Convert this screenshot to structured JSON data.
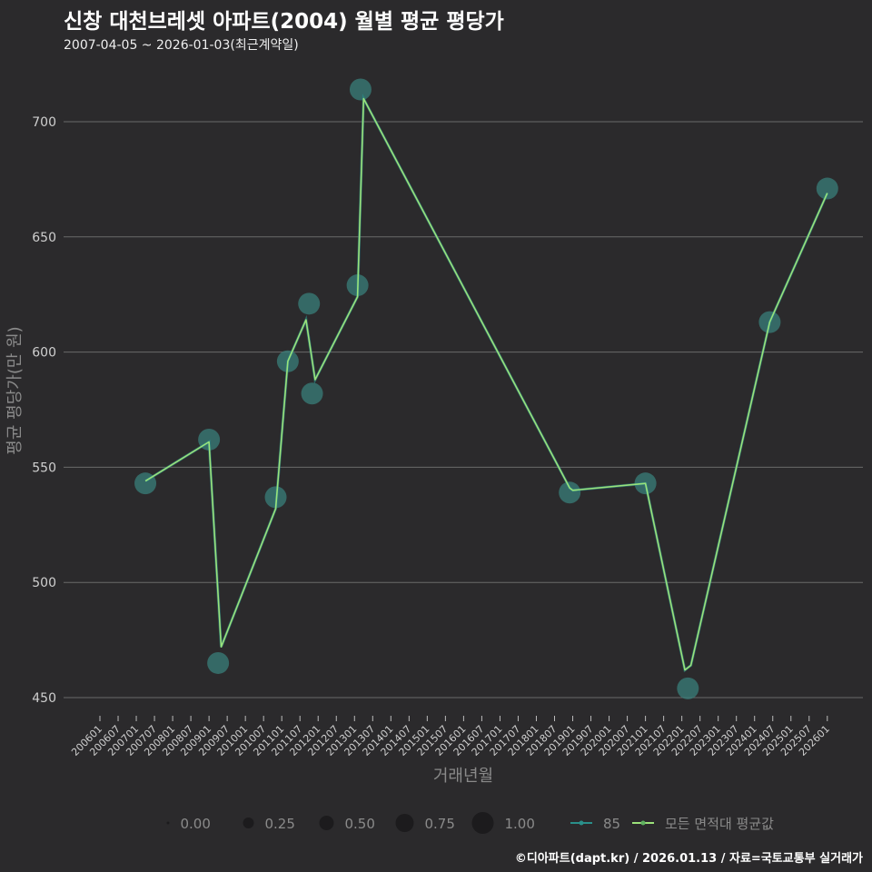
{
  "title": "신창 대천브레셋 아파트(2004) 월별 평균 평당가",
  "subtitle": "2007-04-05 ~ 2026-01-03(최근계약일)",
  "caption": "©디아파트(dapt.kr) / 2026.01.13 / 자료=국토교통부 실거래가",
  "colors": {
    "bg": "#2b2a2c",
    "series85": "#2a8f8a",
    "bubble": "#3a7f7a",
    "avg_line": "#9be27a",
    "grid": "#6a6a6a"
  },
  "chart_data": {
    "type": "line",
    "title": "신창 대천브레셋 아파트(2004) 월별 평균 평당가",
    "xlabel": "거래년월",
    "ylabel": "평균 평당가(만 원)",
    "ylim": [
      440,
      720
    ],
    "yticks": [
      450,
      500,
      550,
      600,
      650,
      700
    ],
    "xticks": [
      "200601",
      "200607",
      "200701",
      "200707",
      "200801",
      "200807",
      "200901",
      "200907",
      "201001",
      "201007",
      "201101",
      "201107",
      "201201",
      "201207",
      "201301",
      "201307",
      "201401",
      "201407",
      "201501",
      "201507",
      "201601",
      "201607",
      "201701",
      "201707",
      "201801",
      "201807",
      "201901",
      "201907",
      "202001",
      "202007",
      "202101",
      "202107",
      "202201",
      "202207",
      "202301",
      "202307",
      "202401",
      "202407",
      "202501",
      "202507",
      "202601"
    ],
    "size_legend": {
      "title": "",
      "values": [
        "0.00",
        "0.25",
        "0.50",
        "0.75",
        "1.00"
      ]
    },
    "series": [
      {
        "name": "85",
        "type": "scatter-line",
        "points": [
          [
            "2007-04",
            543
          ],
          [
            "2009-01",
            562
          ],
          [
            "2009-04",
            465
          ],
          [
            "2010-11",
            537
          ],
          [
            "2011-03",
            596
          ],
          [
            "2011-10",
            621
          ],
          [
            "2011-11",
            582
          ],
          [
            "2013-02",
            629
          ],
          [
            "2013-03",
            714
          ],
          [
            "2018-12",
            539
          ],
          [
            "2021-01",
            543
          ],
          [
            "2022-03",
            454
          ],
          [
            "2024-06",
            613
          ],
          [
            "2026-01",
            671
          ]
        ]
      },
      {
        "name": "모든 면적대 평균값",
        "type": "line",
        "points": [
          [
            "2007-04",
            544
          ],
          [
            "2009-01",
            561
          ],
          [
            "2009-05",
            472
          ],
          [
            "2010-11",
            532
          ],
          [
            "2011-03",
            596
          ],
          [
            "2011-09",
            614
          ],
          [
            "2011-12",
            588
          ],
          [
            "2013-02",
            624
          ],
          [
            "2013-04",
            710
          ],
          [
            "2018-12",
            541
          ],
          [
            "2019-01",
            540
          ],
          [
            "2021-01",
            543
          ],
          [
            "2022-02",
            462
          ],
          [
            "2022-04",
            464
          ],
          [
            "2024-06",
            613
          ],
          [
            "2026-01",
            669
          ]
        ]
      }
    ],
    "legend_position": "bottom"
  }
}
